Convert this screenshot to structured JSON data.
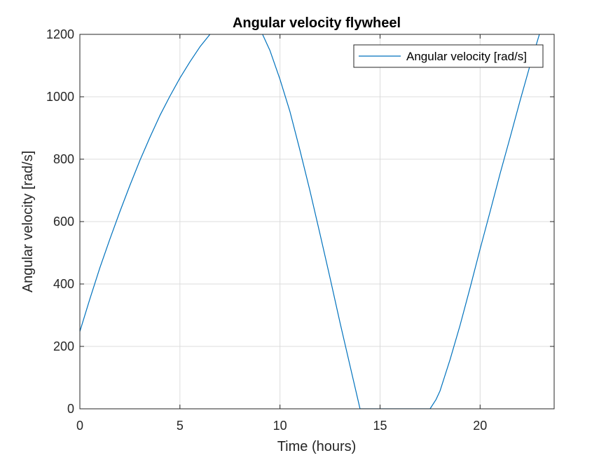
{
  "chart_data": {
    "type": "line",
    "title": "Angular velocity flywheel",
    "xlabel": "Time (hours)",
    "ylabel": "Angular velocity [rad/s]",
    "xlim": [
      0,
      23.7
    ],
    "ylim": [
      0,
      1200
    ],
    "xticks": [
      0,
      5,
      10,
      15,
      20
    ],
    "yticks": [
      0,
      200,
      400,
      600,
      800,
      1000,
      1200
    ],
    "grid": true,
    "legend": {
      "placement": "top-right",
      "entries": [
        "Angular velocity [rad/s]"
      ]
    },
    "series": [
      {
        "name": "Angular velocity [rad/s]",
        "color": "#0072BD",
        "x": [
          0,
          0.5,
          1,
          1.5,
          2,
          2.5,
          3,
          3.5,
          4,
          4.5,
          5,
          5.5,
          6,
          6.5,
          7,
          7.5,
          7.8,
          8.0,
          8.2,
          8.5,
          9,
          9.5,
          10,
          10.5,
          11,
          11.5,
          12,
          12.5,
          13,
          13.5,
          14,
          15,
          16,
          17,
          17.5,
          17.8,
          18,
          18.5,
          19,
          19.5,
          20,
          20.5,
          21,
          21.5,
          22,
          22.5,
          23,
          23.7
        ],
        "y": [
          248,
          352,
          452,
          544,
          632,
          716,
          796,
          870,
          940,
          1002,
          1060,
          1112,
          1160,
          1200,
          1235,
          1268,
          1288,
          1293,
          1285,
          1268,
          1218,
          1148,
          1056,
          952,
          828,
          698,
          560,
          420,
          276,
          138,
          0,
          0,
          0,
          0,
          0,
          30,
          58,
          158,
          268,
          388,
          512,
          632,
          754,
          870,
          988,
          1102,
          1208,
          1348
        ]
      }
    ]
  }
}
